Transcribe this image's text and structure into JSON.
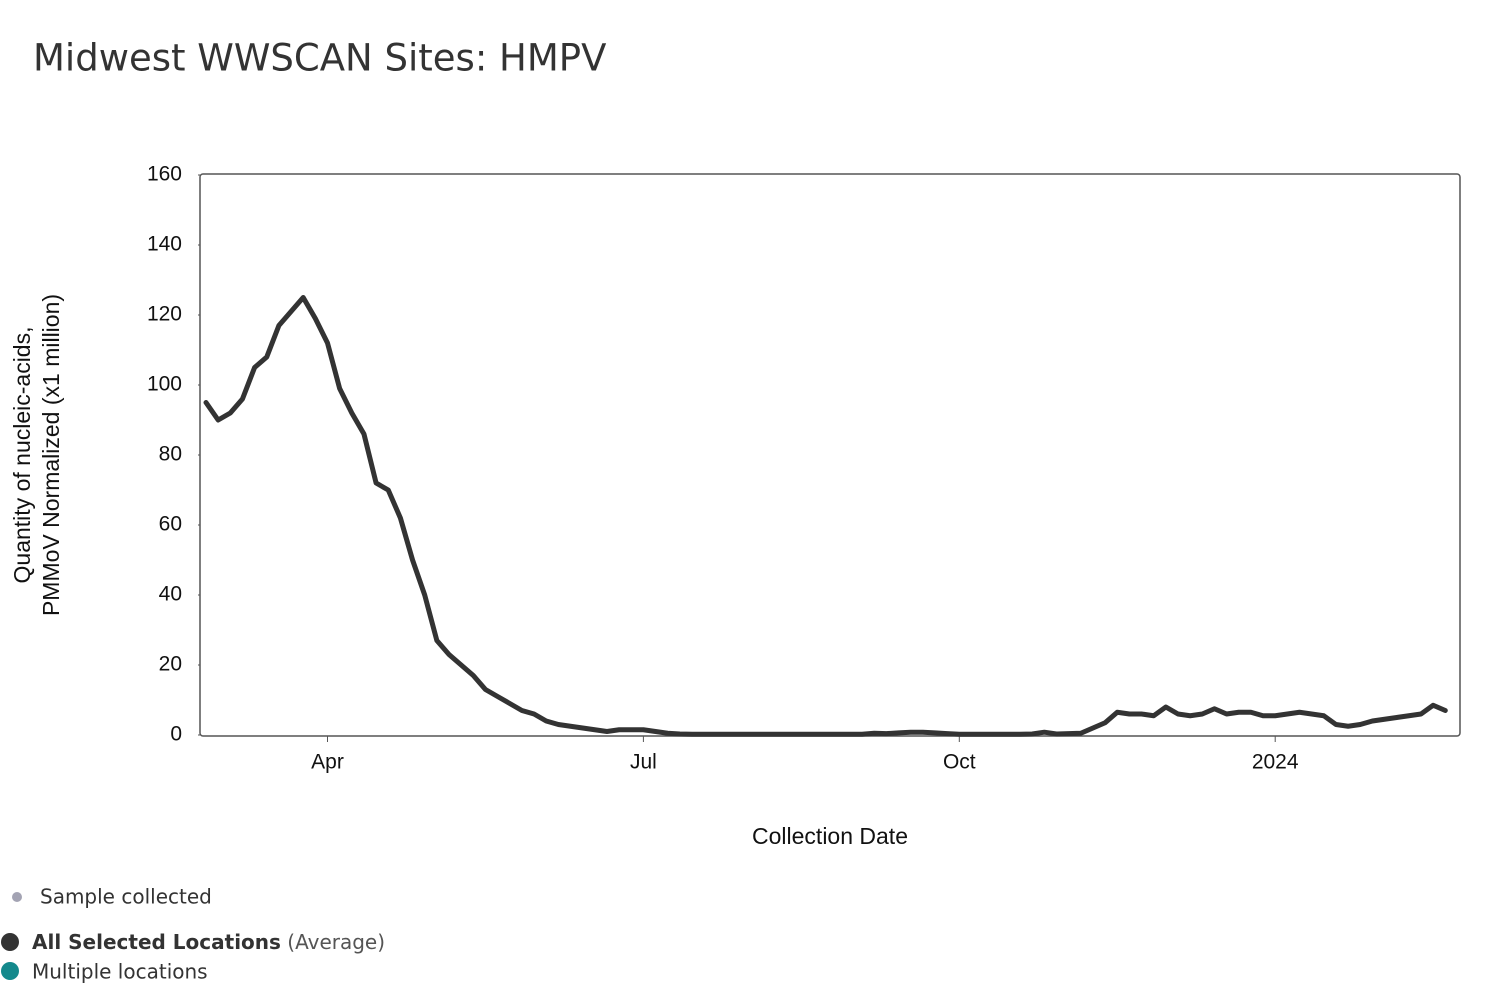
{
  "chart_data": {
    "type": "line",
    "title": "Midwest WWSCAN Sites: HMPV",
    "x_label": "Collection Date",
    "y_label": [
      "Quantity of nucleic-acids,",
      "PMMoV Normalized (x1 million)"
    ],
    "categories": [
      null,
      null,
      null,
      null,
      null,
      null,
      null,
      null,
      null,
      null,
      "Apr",
      null,
      null,
      null,
      null,
      null,
      null,
      null,
      null,
      null,
      null,
      null,
      null,
      null,
      null,
      null,
      null,
      null,
      null,
      null,
      null,
      null,
      null,
      null,
      null,
      null,
      "Jul",
      null,
      null,
      null,
      null,
      null,
      null,
      null,
      null,
      null,
      null,
      null,
      null,
      null,
      null,
      null,
      null,
      null,
      null,
      null,
      null,
      null,
      null,
      null,
      null,
      null,
      "Oct",
      null,
      null,
      null,
      null,
      null,
      null,
      null,
      null,
      null,
      null,
      null,
      null,
      null,
      null,
      null,
      null,
      null,
      null,
      null,
      null,
      null,
      null,
      null,
      null,
      null,
      "2024",
      null,
      null,
      null,
      null,
      null,
      null,
      null,
      null,
      null,
      null,
      null,
      null,
      null,
      null
    ],
    "series": [
      {
        "name": "All Selected Locations",
        "color": "#333333",
        "values": [
          95,
          90,
          92,
          96,
          105,
          108,
          117,
          121,
          125,
          119,
          112,
          99,
          92,
          86,
          72,
          70,
          62,
          50,
          40,
          27,
          23,
          20,
          17,
          13,
          11,
          9,
          7,
          6,
          4,
          3,
          2.5,
          2,
          1.5,
          1,
          1.5,
          1.5,
          1.5,
          1,
          0.5,
          0.3,
          0.2,
          0.2,
          0.2,
          0.2,
          0.2,
          0.2,
          0.2,
          0.2,
          0.2,
          0.2,
          0.2,
          0.2,
          0.2,
          0.2,
          0.2,
          0.5,
          0.4,
          0.6,
          0.8,
          0.8,
          0.6,
          0.4,
          0.2,
          0.2,
          0.2,
          0.2,
          0.2,
          0.2,
          0.3,
          0.8,
          0.3,
          0.4,
          0.5,
          2,
          3.5,
          6.5,
          6,
          6,
          5.5,
          8,
          6,
          5.5,
          6,
          7.5,
          6,
          6.5,
          6.5,
          5.5,
          5.5,
          6,
          6.5,
          6,
          5.5,
          3,
          2.5,
          3,
          4,
          4.5,
          5,
          5.5,
          6,
          8.5,
          7
        ]
      }
    ],
    "legend_note": "(Average)",
    "other_legend": [
      {
        "name": "Sample collected",
        "color": "#a3a3b3"
      },
      {
        "name": "Multiple locations",
        "color": "#14898c"
      }
    ],
    "ylim": [
      0,
      160
    ],
    "yticks": [
      0,
      20,
      40,
      60,
      80,
      100,
      120,
      140,
      160
    ],
    "grid": false
  }
}
